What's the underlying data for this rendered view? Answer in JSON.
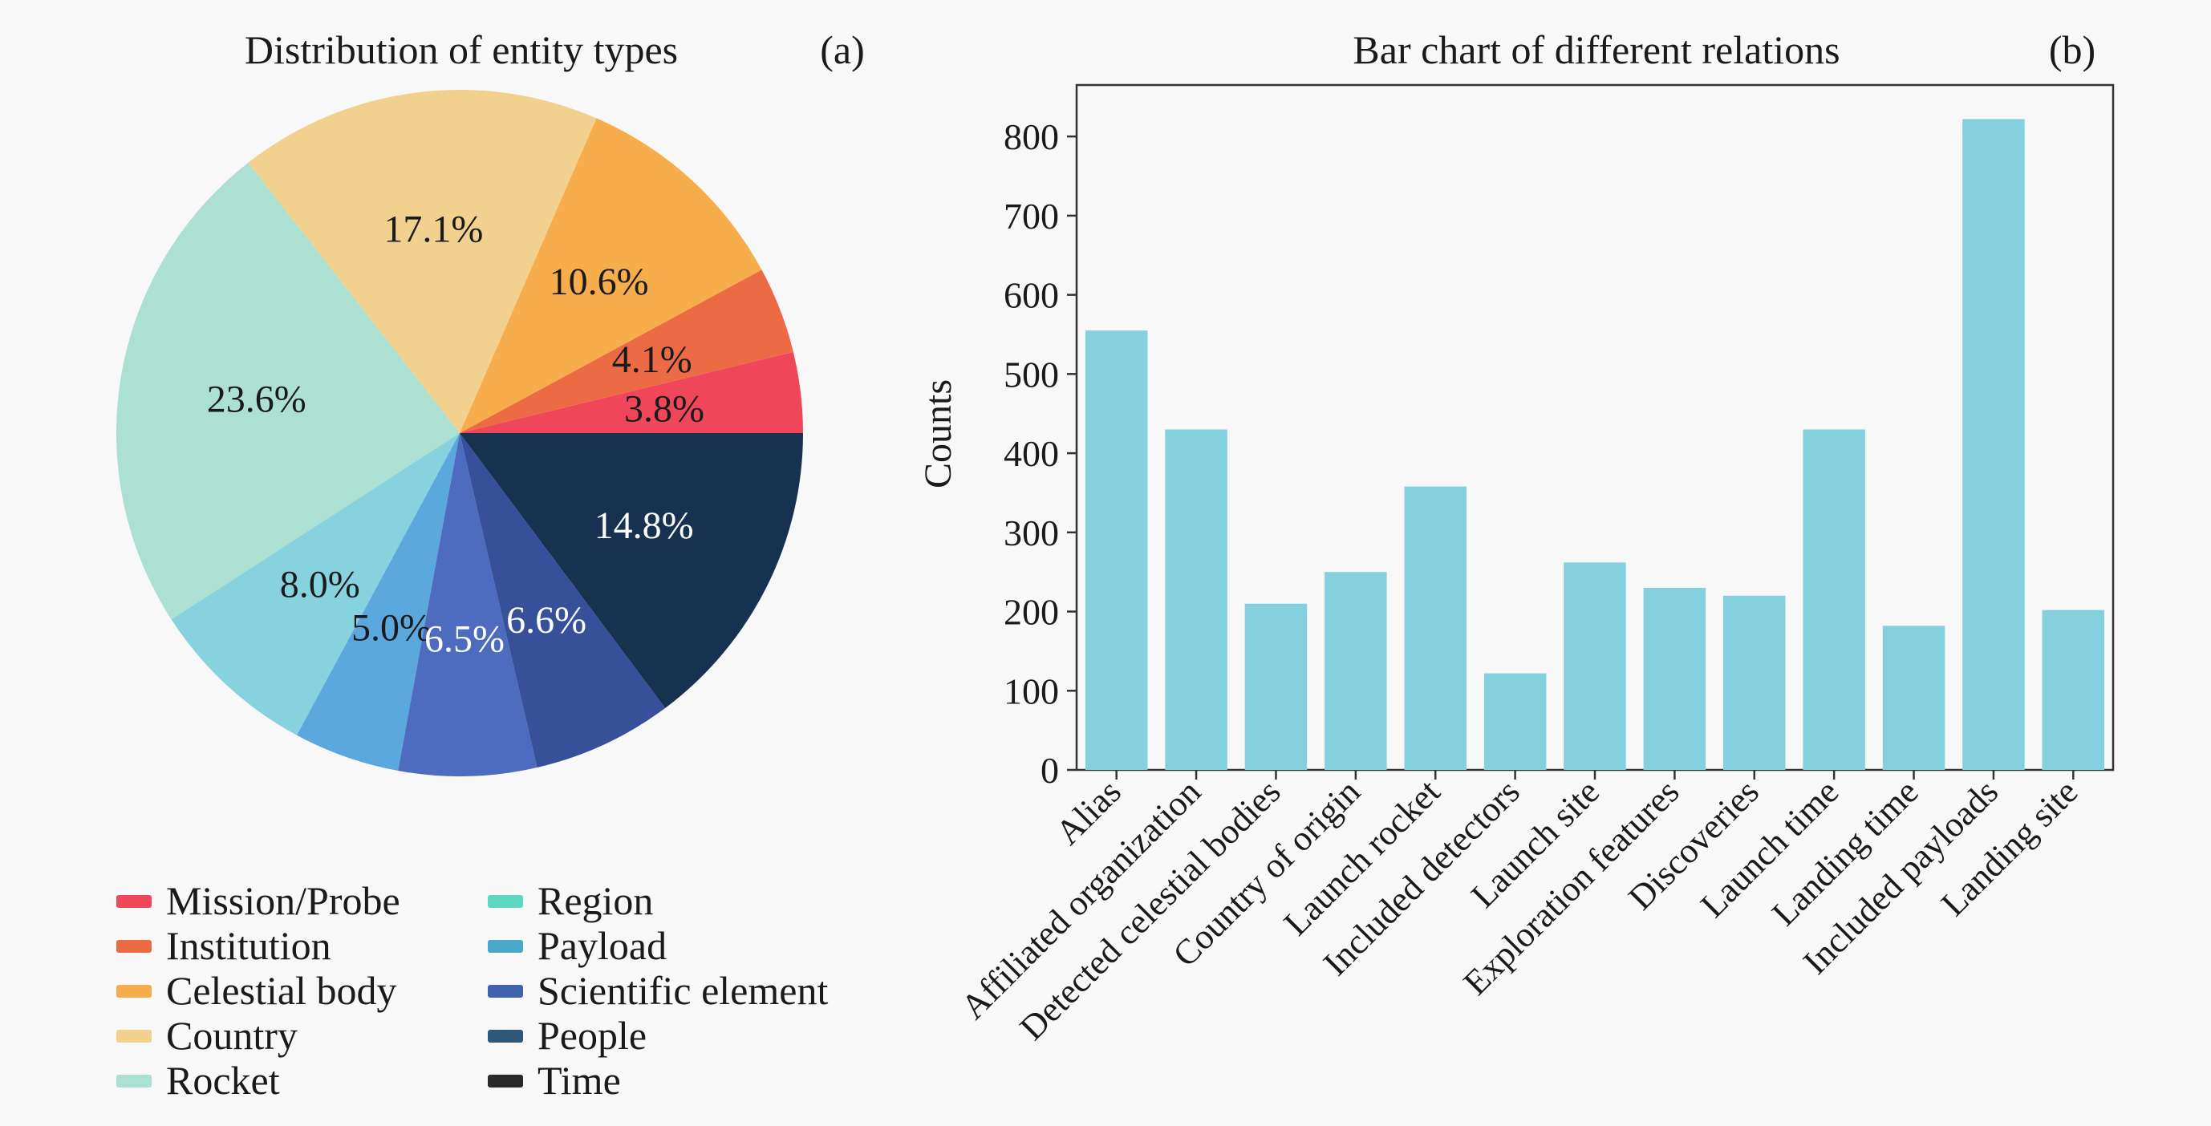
{
  "chart_data": [
    {
      "type": "pie",
      "title": "Distribution of entity types",
      "panel_label": "(a)",
      "slices": [
        {
          "name": "Mission/Probe",
          "value": 3.8,
          "label": "3.8%",
          "color": "#f0465a",
          "label_color": "#1a1a1a"
        },
        {
          "name": "Institution",
          "value": 4.1,
          "label": "4.1%",
          "color": "#ec6b45",
          "label_color": "#1a1a1a"
        },
        {
          "name": "Celestial body",
          "value": 10.6,
          "label": "10.6%",
          "color": "#f7ad4b",
          "label_color": "#1a1a1a"
        },
        {
          "name": "Country",
          "value": 17.1,
          "label": "17.1%",
          "color": "#f2d08e",
          "label_color": "#1a1a1a"
        },
        {
          "name": "Rocket",
          "value": 23.6,
          "label": "23.6%",
          "color": "#ace0d2",
          "label_color": "#1a1a1a"
        },
        {
          "name": "Region",
          "value": 8.0,
          "label": "8.0%",
          "color": "#86d3df",
          "label_color": "#1a1a1a"
        },
        {
          "name": "Payload",
          "value": 5.0,
          "label": "5.0%",
          "color": "#5ba8df",
          "label_color": "#1a1a1a"
        },
        {
          "name": "Scientific element",
          "value": 6.5,
          "label": "6.5%",
          "color": "#4d6cc0",
          "label_color": "#ffffff"
        },
        {
          "name": "People",
          "value": 6.6,
          "label": "6.6%",
          "color": "#36519a",
          "label_color": "#ffffff"
        },
        {
          "name": "Time",
          "value": 14.8,
          "label": "14.8%",
          "color": "#163250",
          "label_color": "#ffffff"
        }
      ],
      "legend": [
        {
          "label": "Mission/Probe",
          "color": "#f0465a"
        },
        {
          "label": "Institution",
          "color": "#ec6b45"
        },
        {
          "label": "Celestial body",
          "color": "#f7ad4b"
        },
        {
          "label": "Country",
          "color": "#f2d08e"
        },
        {
          "label": "Rocket",
          "color": "#ace0d2"
        },
        {
          "label": "Region",
          "color": "#5dd8c3"
        },
        {
          "label": "Payload",
          "color": "#4aa8c9"
        },
        {
          "label": "Scientific element",
          "color": "#4060b0"
        },
        {
          "label": "People",
          "color": "#2f5777"
        },
        {
          "label": "Time",
          "color": "#2a2a2a"
        }
      ],
      "legend_placement": "bottom"
    },
    {
      "type": "bar",
      "title": "Bar chart of different relations",
      "panel_label": "(b)",
      "categories": [
        "Alias",
        "Affiliated organization",
        "Detected celestial bodies",
        "Country of origin",
        "Launch rocket",
        "Included detectors",
        "Launch site",
        "Exploration features",
        "Discoveries",
        "Launch time",
        "Landing time",
        "Included payloads",
        "Landing site"
      ],
      "values": [
        555,
        430,
        210,
        250,
        358,
        122,
        262,
        230,
        220,
        430,
        182,
        822,
        202
      ],
      "ylabel": "Counts",
      "xlabel": "",
      "ylim": [
        0,
        865
      ],
      "yticks": [
        0,
        100,
        200,
        300,
        400,
        500,
        600,
        700,
        800
      ],
      "bar_color": "#85d0de",
      "grid": false
    }
  ]
}
